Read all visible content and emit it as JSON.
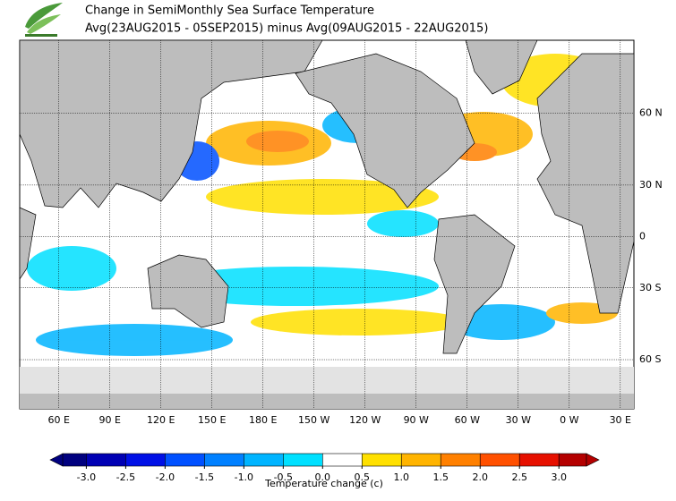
{
  "title": "Change in SemiMonthly Sea Surface Temperature",
  "subtitle": "Avg(23AUG2015 - 05SEP2015) minus Avg(09AUG2015 - 22AUG2015)",
  "map": {
    "projection": "mercator",
    "xlim": [
      37,
      398
    ],
    "ylim": [
      -72,
      76
    ],
    "grid": true,
    "xticks": [
      {
        "value": 60,
        "label": "60 E"
      },
      {
        "value": 90,
        "label": "90 E"
      },
      {
        "value": 120,
        "label": "120 E"
      },
      {
        "value": 150,
        "label": "150 E"
      },
      {
        "value": 180,
        "label": "180 E"
      },
      {
        "value": 210,
        "label": "150 W"
      },
      {
        "value": 240,
        "label": "120 W"
      },
      {
        "value": 270,
        "label": "90 W"
      },
      {
        "value": 300,
        "label": "60 W"
      },
      {
        "value": 330,
        "label": "30 W"
      },
      {
        "value": 360,
        "label": "0 W"
      },
      {
        "value": 390,
        "label": "30 E"
      }
    ],
    "yticks": [
      {
        "value": 60,
        "label": "60 N"
      },
      {
        "value": 30,
        "label": "30 N"
      },
      0,
      {
        "value": -30,
        "label": "30 S"
      },
      {
        "value": -60,
        "label": "60 S"
      }
    ]
  },
  "colorbar": {
    "lim": [
      -3.3,
      3.35
    ],
    "ticks": [
      {
        "value": -3,
        "label": "-3.0"
      },
      {
        "value": -2.5,
        "label": "-2.5"
      },
      {
        "value": -2,
        "label": "-2.0"
      },
      {
        "value": -1.5,
        "label": "-1.5"
      },
      {
        "value": -1,
        "label": "-1.0"
      },
      {
        "value": -0.5,
        "label": "-0.5"
      },
      {
        "value": 0,
        "label": "0.0"
      },
      {
        "value": 0.5,
        "label": "0.5"
      },
      {
        "value": 1,
        "label": "1.0"
      },
      {
        "value": 1.5,
        "label": "1.5"
      },
      {
        "value": 2,
        "label": "2.0"
      },
      {
        "value": 2.5,
        "label": "2.5"
      },
      {
        "value": 3,
        "label": "3.0"
      }
    ],
    "colors": [
      "#00007f",
      "#0000b4",
      "#0010e6",
      "#0050ff",
      "#0080ff",
      "#00b4ff",
      "#00e0ff",
      "#ffffff",
      "#ffe000",
      "#ffb400",
      "#ff8000",
      "#ff5000",
      "#e61000",
      "#b40000"
    ],
    "label": "Temperature change  (c)"
  }
}
